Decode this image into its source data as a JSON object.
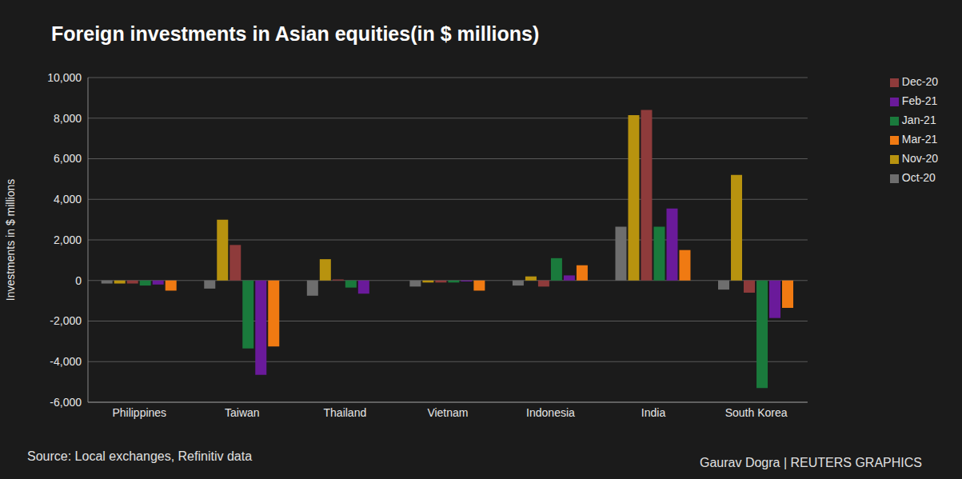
{
  "chart_data": {
    "type": "bar",
    "title": "Foreign investments in Asian equities(in $ millions)",
    "y_label": "Investments in $ millions",
    "source": "Source: Local exchanges, Refinitiv data",
    "credit": "Gaurav Dogra | REUTERS GRAPHICS",
    "categories": [
      "Philippines",
      "Taiwan",
      "Thailand",
      "Vietnam",
      "Indonesia",
      "India",
      "South Korea"
    ],
    "series": [
      {
        "name": "Oct-20",
        "color": "#6e6e6e",
        "values": [
          -150,
          -400,
          -750,
          -300,
          -250,
          2650,
          -450
        ]
      },
      {
        "name": "Nov-20",
        "color": "#b8930f",
        "values": [
          -150,
          3000,
          1050,
          -100,
          200,
          8150,
          5200
        ]
      },
      {
        "name": "Dec-20",
        "color": "#8e3b3b",
        "values": [
          -150,
          1750,
          50,
          -100,
          -300,
          8400,
          -600
        ]
      },
      {
        "name": "Jan-21",
        "color": "#1a7a3c",
        "values": [
          -250,
          -3350,
          -350,
          -100,
          1100,
          2650,
          -5300
        ]
      },
      {
        "name": "Feb-21",
        "color": "#6a1a9a",
        "values": [
          -200,
          -4650,
          -650,
          -50,
          250,
          3550,
          -1850
        ]
      },
      {
        "name": "Mar-21",
        "color": "#f07a12",
        "values": [
          -500,
          -3250,
          0,
          -500,
          750,
          1500,
          -1350
        ]
      }
    ],
    "ylim": [
      -6000,
      10000
    ],
    "yticks": [
      {
        "value": -6000,
        "label": "-6,000"
      },
      {
        "value": -4000,
        "label": "-4,000"
      },
      {
        "value": -2000,
        "label": "-2,000"
      },
      0,
      {
        "value": 2000,
        "label": "2,000"
      },
      {
        "value": 4000,
        "label": "4,000"
      },
      {
        "value": 6000,
        "label": "6,000"
      },
      {
        "value": 8000,
        "label": "8,000"
      },
      {
        "value": 10000,
        "label": "10,000"
      }
    ],
    "grid": true,
    "legend": "top-right"
  }
}
